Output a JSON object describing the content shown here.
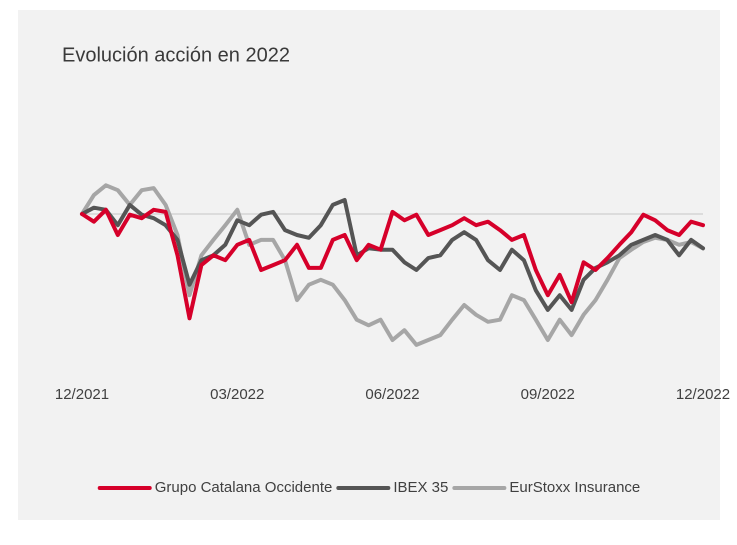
{
  "chart_data": {
    "type": "line",
    "title": "Evolución acción en 2022",
    "categories": [
      "12/2021",
      null,
      null,
      null,
      null,
      null,
      null,
      null,
      null,
      null,
      null,
      null,
      null,
      "03/2022",
      null,
      null,
      null,
      null,
      null,
      null,
      null,
      null,
      null,
      null,
      null,
      null,
      "06/2022",
      null,
      null,
      null,
      null,
      null,
      null,
      null,
      null,
      null,
      null,
      null,
      null,
      "09/2022",
      null,
      null,
      null,
      null,
      null,
      null,
      null,
      null,
      null,
      null,
      null,
      null,
      "12/2022"
    ],
    "ylim": [
      78,
      110
    ],
    "reference_line": 100,
    "series": [
      {
        "name": "Grupo Catalana Occidente",
        "color": "#d6002a",
        "values": [
          100,
          98.9,
          100.6,
          97,
          99.9,
          99.4,
          100.6,
          100.3,
          94.1,
          85.1,
          92.7,
          94.1,
          93.4,
          95.6,
          96.3,
          92,
          92.7,
          93.4,
          95.6,
          92.3,
          92.3,
          96.3,
          97,
          93.4,
          95.6,
          94.9,
          100.3,
          99.1,
          99.9,
          97,
          97.7,
          98.4,
          99.4,
          98.4,
          98.9,
          97.7,
          96.3,
          97,
          92,
          88.4,
          91.3,
          87.4,
          93.1,
          92,
          93.7,
          95.6,
          97.4,
          99.9,
          99.1,
          97.7,
          97,
          98.9,
          98.4
        ]
      },
      {
        "name": "IBEX 35",
        "color": "#555555",
        "values": [
          100,
          100.9,
          100.6,
          98.4,
          101.3,
          99.9,
          99.4,
          98.4,
          96.3,
          89.9,
          93.4,
          94.1,
          95.6,
          99.1,
          98.4,
          99.9,
          100.3,
          97.7,
          97,
          96.6,
          98.4,
          101.3,
          102,
          94.1,
          95.1,
          94.9,
          94.9,
          93.1,
          92,
          93.7,
          94.1,
          96.3,
          97.4,
          96.3,
          93.4,
          92,
          94.9,
          93.4,
          89.1,
          86.3,
          88.4,
          86.3,
          90.6,
          92.3,
          93.1,
          94.1,
          95.6,
          96.3,
          97,
          96.3,
          94.1,
          96.3,
          95.1
        ]
      },
      {
        "name": "EurStoxx Insurance",
        "color": "#a6a6a6",
        "values": [
          100,
          102.7,
          104.1,
          103.4,
          101.3,
          103.4,
          103.7,
          101.3,
          97,
          88.4,
          94.1,
          96.3,
          98.4,
          100.6,
          95.6,
          96.3,
          96.3,
          93.4,
          87.7,
          89.9,
          90.6,
          89.9,
          87.7,
          84.9,
          84.1,
          84.9,
          82,
          83.4,
          81.3,
          82,
          82.7,
          84.9,
          87,
          85.6,
          84.6,
          84.9,
          88.4,
          87.7,
          84.9,
          82,
          84.9,
          82.7,
          85.6,
          87.7,
          90.6,
          93.7,
          94.9,
          96,
          96.6,
          96.3,
          95.6,
          96,
          95.1
        ]
      }
    ]
  }
}
